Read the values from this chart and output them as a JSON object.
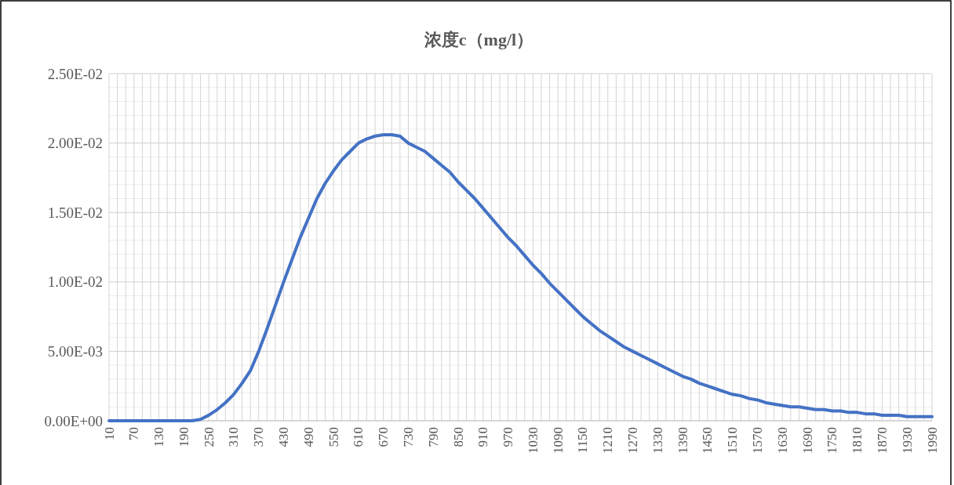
{
  "chart_data": {
    "type": "line",
    "title": "浓度c（mg/l）",
    "categories": [
      "10",
      null,
      null,
      "70",
      null,
      null,
      "130",
      null,
      null,
      "190",
      null,
      null,
      "250",
      null,
      null,
      "310",
      null,
      null,
      "370",
      null,
      null,
      "430",
      null,
      null,
      "490",
      null,
      null,
      "550",
      null,
      null,
      "610",
      null,
      null,
      "670",
      null,
      null,
      "730",
      null,
      null,
      "790",
      null,
      null,
      "850",
      null,
      null,
      "910",
      null,
      null,
      "970",
      null,
      null,
      "1030",
      null,
      null,
      "1090",
      null,
      null,
      "1150",
      null,
      null,
      "1210",
      null,
      null,
      "1270",
      null,
      null,
      "1330",
      null,
      null,
      "1390",
      null,
      null,
      "1450",
      null,
      null,
      "1510",
      null,
      null,
      "1570",
      null,
      null,
      "1630",
      null,
      null,
      "1690",
      null,
      null,
      "1750",
      null,
      null,
      "1810",
      null,
      null,
      "1870",
      null,
      null,
      "1930",
      null,
      null,
      "1990"
    ],
    "series": [
      {
        "color": "#4472c4",
        "values": [
          0,
          0,
          0,
          0,
          0,
          0,
          0,
          0,
          0,
          0,
          0,
          0.0001,
          0.0004,
          0.0008,
          0.0013,
          0.0019,
          0.0027,
          0.0036,
          0.005,
          0.0066,
          0.0083,
          0.01,
          0.0116,
          0.0132,
          0.0146,
          0.016,
          0.0171,
          0.018,
          0.0188,
          0.0194,
          0.02,
          0.0203,
          0.0205,
          0.0206,
          0.0206,
          0.0205,
          0.02,
          0.0197,
          0.0194,
          0.0189,
          0.0184,
          0.0179,
          0.0172,
          0.0166,
          0.016,
          0.0153,
          0.0146,
          0.0139,
          0.0132,
          0.0126,
          0.0119,
          0.0112,
          0.0106,
          0.0099,
          0.0093,
          0.0087,
          0.0081,
          0.0075,
          0.007,
          0.0065,
          0.0061,
          0.0057,
          0.0053,
          0.005,
          0.0047,
          0.0044,
          0.0041,
          0.0038,
          0.0035,
          0.0032,
          0.003,
          0.0027,
          0.0025,
          0.0023,
          0.0021,
          0.0019,
          0.0018,
          0.0016,
          0.0015,
          0.0013,
          0.0012,
          0.0011,
          0.001,
          0.001,
          0.0009,
          0.0008,
          0.0008,
          0.0007,
          0.0007,
          0.0006,
          0.0006,
          0.0005,
          0.0005,
          0.0004,
          0.0004,
          0.0004,
          0.0003,
          0.0003,
          0.0003,
          0.0003
        ]
      }
    ],
    "ylim": [
      0,
      0.025
    ],
    "yticks": [
      {
        "value": 0,
        "label": "0.00E+00"
      },
      {
        "value": 0.005,
        "label": "5.00E-03"
      },
      {
        "value": 0.01,
        "label": "1.00E-02"
      },
      {
        "value": 0.015,
        "label": "1.50E-02"
      },
      {
        "value": 0.02,
        "label": "2.00E-02"
      },
      {
        "value": 0.025,
        "label": "2.50E-02"
      }
    ],
    "grid": true,
    "marker": "none",
    "line_style": "solid"
  }
}
